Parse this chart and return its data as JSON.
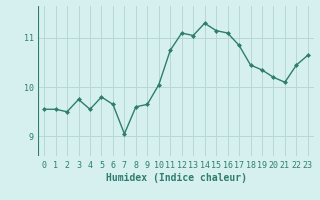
{
  "x": [
    0,
    1,
    2,
    3,
    4,
    5,
    6,
    7,
    8,
    9,
    10,
    11,
    12,
    13,
    14,
    15,
    16,
    17,
    18,
    19,
    20,
    21,
    22,
    23
  ],
  "y": [
    9.55,
    9.55,
    9.5,
    9.75,
    9.55,
    9.8,
    9.65,
    9.05,
    9.6,
    9.65,
    10.05,
    10.75,
    11.1,
    11.05,
    11.3,
    11.15,
    11.1,
    10.85,
    10.45,
    10.35,
    10.2,
    10.1,
    10.45,
    10.65
  ],
  "line_color": "#2e7d6e",
  "marker": "D",
  "marker_size": 2,
  "line_width": 1.0,
  "bg_color": "#d6f0ef",
  "grid_color": "#b8d8d5",
  "xlabel": "Humidex (Indice chaleur)",
  "xlabel_fontsize": 7,
  "tick_label_fontsize": 6,
  "yticks": [
    9,
    10,
    11
  ],
  "ylim": [
    8.6,
    11.65
  ],
  "xlim": [
    -0.5,
    23.5
  ],
  "xticks": [
    0,
    1,
    2,
    3,
    4,
    5,
    6,
    7,
    8,
    9,
    10,
    11,
    12,
    13,
    14,
    15,
    16,
    17,
    18,
    19,
    20,
    21,
    22,
    23
  ]
}
